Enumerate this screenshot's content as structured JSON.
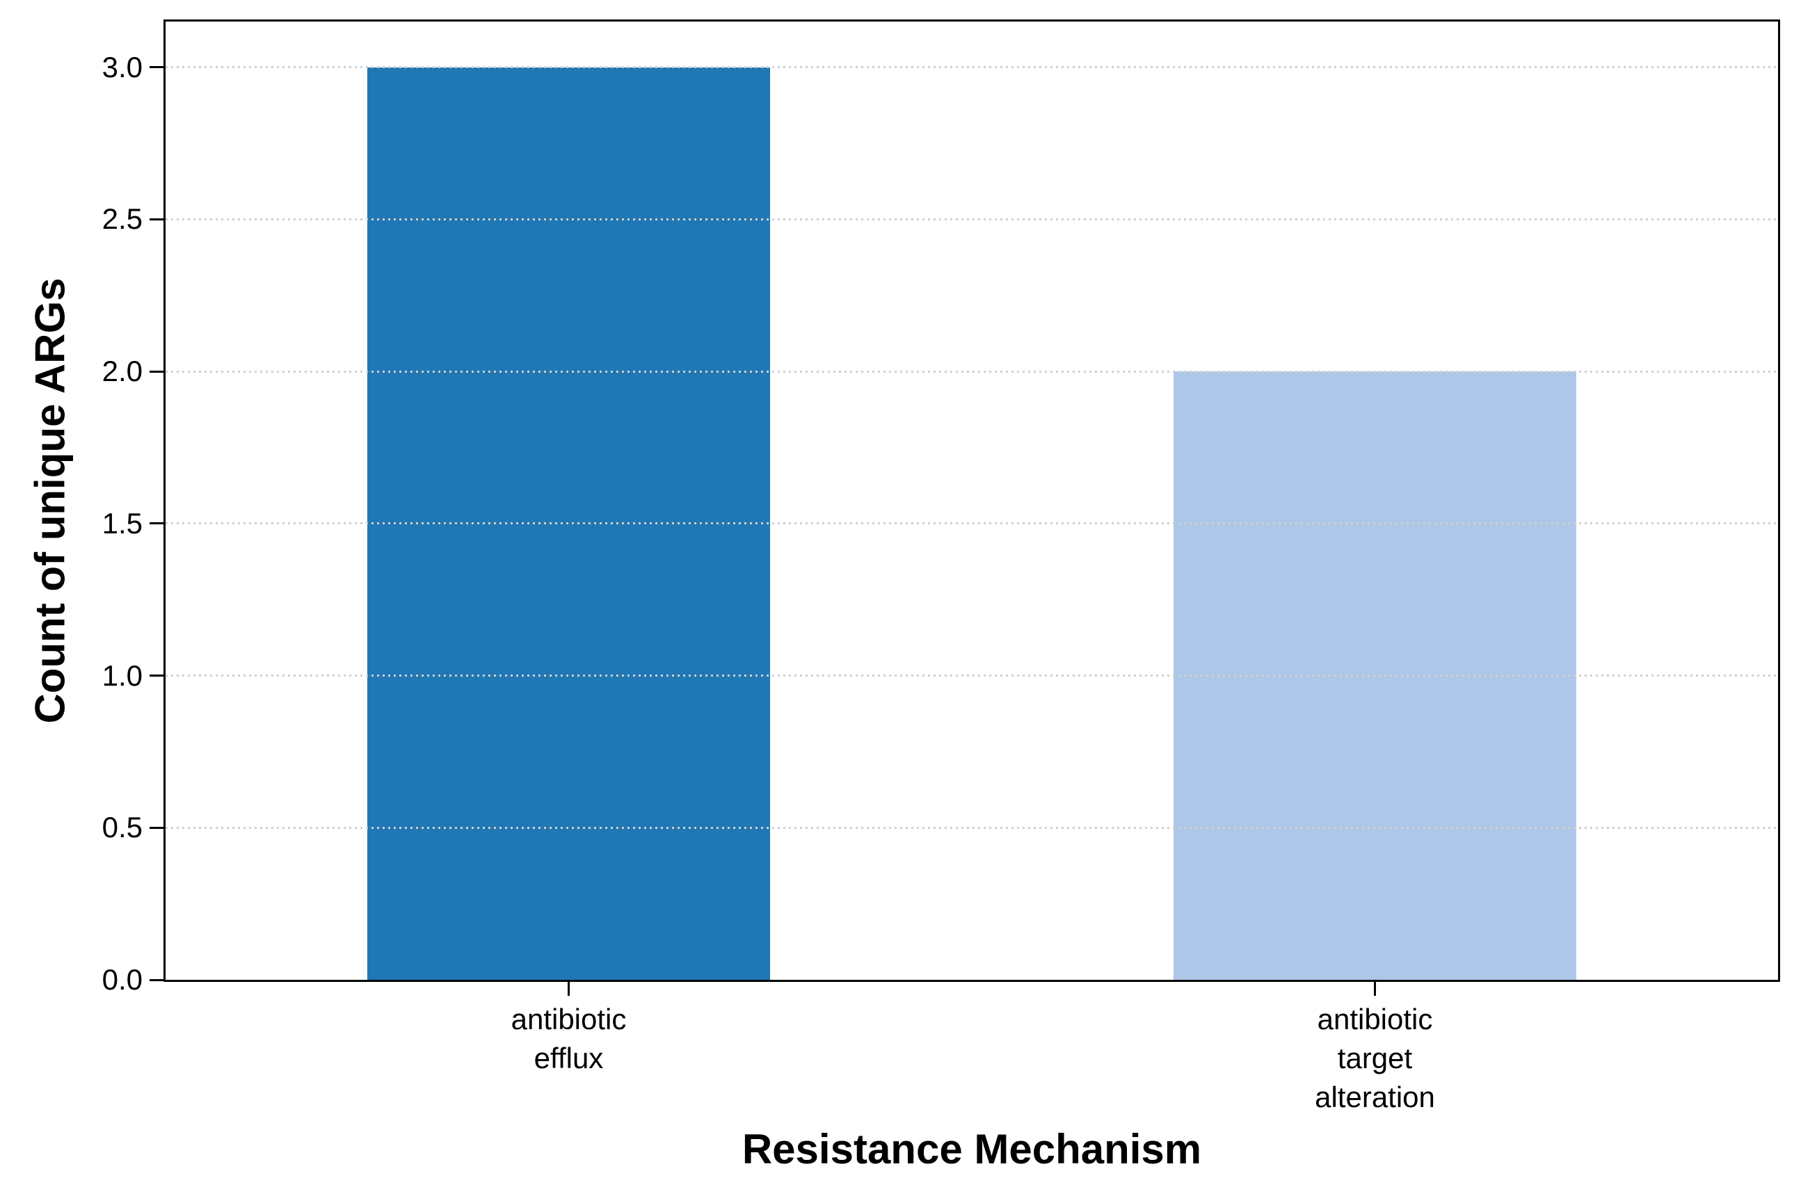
{
  "chart_data": {
    "type": "bar",
    "xlabel": "Resistance Mechanism",
    "ylabel": "Count of unique ARGs",
    "categories": [
      "antibiotic efflux",
      "antibiotic target alteration"
    ],
    "category_tick_lines": [
      [
        "antibiotic",
        "efflux"
      ],
      [
        "antibiotic",
        "target",
        "alteration"
      ]
    ],
    "values": [
      3,
      2
    ],
    "bar_colors": [
      "#1f77b4",
      "#aec7e8"
    ],
    "bar_width_fraction": 0.5,
    "ylim": [
      0,
      3.15
    ],
    "yticks": [
      0.0,
      0.5,
      1.0,
      1.5,
      2.0,
      2.5,
      3.0
    ],
    "ytick_labels": [
      "0.0",
      "0.5",
      "1.0",
      "1.5",
      "2.0",
      "2.5",
      "3.0"
    ],
    "grid": "horizontal dotted, drawn above bars",
    "grid_color": "#d0d0d0",
    "axis_color": "#000000",
    "background_color": "#ffffff",
    "legend": "none",
    "title": ""
  }
}
